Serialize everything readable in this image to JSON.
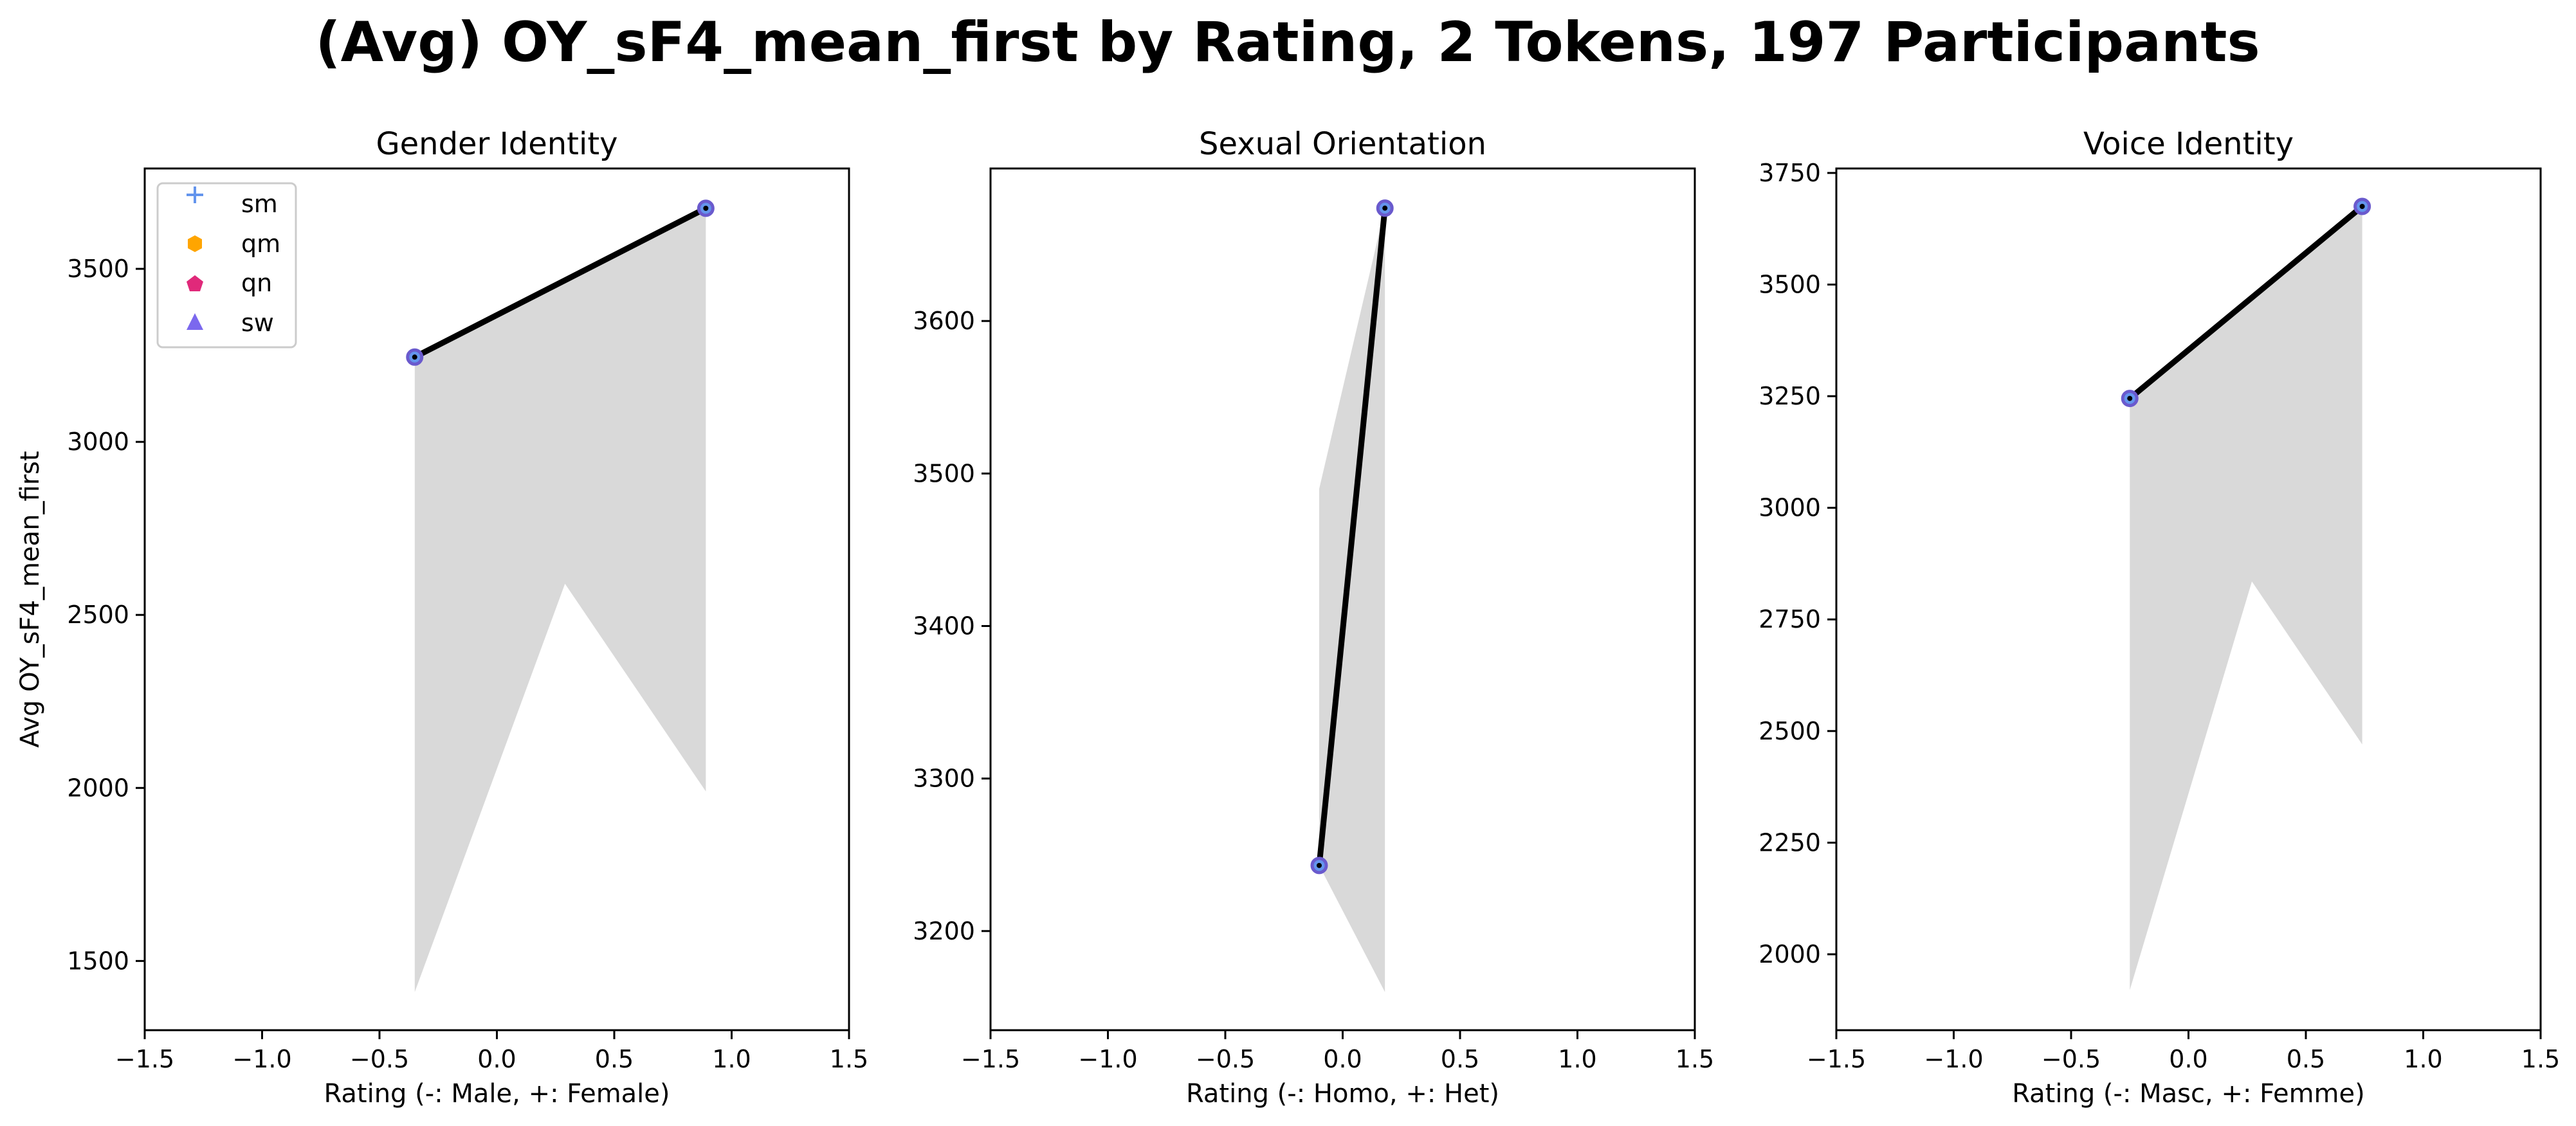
{
  "figure": {
    "title": "(Avg) OY_sF4_mean_first by Rating, 2 Tokens, 197 Participants"
  },
  "legend": {
    "placement": "upper-left of first panel",
    "entries": [
      {
        "label": "sm",
        "marker": "plus",
        "color": "#6495ed"
      },
      {
        "label": "qm",
        "marker": "hexagon",
        "color": "#ffa500"
      },
      {
        "label": "qn",
        "marker": "pentagon",
        "color": "#e0297a"
      },
      {
        "label": "sw",
        "marker": "triangle",
        "color": "#7b68ee"
      }
    ]
  },
  "colors": {
    "line": "#000000",
    "band": "#d9d9d9",
    "point_edge": "#6a5acd",
    "point_fill": "#6495ed"
  },
  "chart_data": [
    {
      "type": "line",
      "title": "Gender Identity",
      "xlabel": "Rating (-: Male, +: Female)",
      "ylabel": "Avg OY_sF4_mean_first",
      "xlim": [
        -1.5,
        1.5
      ],
      "ylim": [
        1300,
        3790
      ],
      "xticks": [
        -1.5,
        -1.0,
        -0.5,
        0.0,
        0.5,
        1.0,
        1.5
      ],
      "xtick_labels": [
        "−1.5",
        "−1.0",
        "−0.5",
        "0.0",
        "0.5",
        "1.0",
        "1.5"
      ],
      "yticks": [
        1500,
        2000,
        2500,
        3000,
        3500
      ],
      "ytick_labels": [
        "1500",
        "2000",
        "2500",
        "3000",
        "3500"
      ],
      "points": [
        {
          "x": -0.35,
          "y": 3245
        },
        {
          "x": 0.89,
          "y": 3675
        }
      ],
      "band": [
        {
          "x": -0.35,
          "y": 3245
        },
        {
          "x": 0.89,
          "y": 3675
        },
        {
          "x": 0.89,
          "y": 1990
        },
        {
          "x": 0.29,
          "y": 2590
        },
        {
          "x": -0.35,
          "y": 1410
        }
      ],
      "grid": false
    },
    {
      "type": "line",
      "title": "Sexual Orientation",
      "xlabel": "Rating (-: Homo, +: Het)",
      "ylabel": "",
      "xlim": [
        -1.5,
        1.5
      ],
      "ylim": [
        3135,
        3700
      ],
      "xticks": [
        -1.5,
        -1.0,
        -0.5,
        0.0,
        0.5,
        1.0,
        1.5
      ],
      "xtick_labels": [
        "−1.5",
        "−1.0",
        "−0.5",
        "0.0",
        "0.5",
        "1.0",
        "1.5"
      ],
      "yticks": [
        3200,
        3300,
        3400,
        3500,
        3600
      ],
      "ytick_labels": [
        "3200",
        "3300",
        "3400",
        "3500",
        "3600"
      ],
      "points": [
        {
          "x": -0.1,
          "y": 3243
        },
        {
          "x": 0.18,
          "y": 3674
        }
      ],
      "band": [
        {
          "x": -0.1,
          "y": 3490
        },
        {
          "x": 0.18,
          "y": 3674
        },
        {
          "x": 0.18,
          "y": 3160
        },
        {
          "x": -0.1,
          "y": 3243
        }
      ],
      "grid": false
    },
    {
      "type": "line",
      "title": "Voice Identity",
      "xlabel": "Rating (-: Masc, +: Femme)",
      "ylabel": "",
      "xlim": [
        -1.5,
        1.5
      ],
      "ylim": [
        1830,
        3760
      ],
      "xticks": [
        -1.5,
        -1.0,
        -0.5,
        0.0,
        0.5,
        1.0,
        1.5
      ],
      "xtick_labels": [
        "−1.5",
        "−1.0",
        "−0.5",
        "0.0",
        "0.5",
        "1.0",
        "1.5"
      ],
      "yticks": [
        2000,
        2250,
        2500,
        2750,
        3000,
        3250,
        3500,
        3750
      ],
      "ytick_labels": [
        "2000",
        "2250",
        "2500",
        "2750",
        "3000",
        "3250",
        "3500",
        "3750"
      ],
      "points": [
        {
          "x": -0.25,
          "y": 3245
        },
        {
          "x": 0.74,
          "y": 3675
        }
      ],
      "band": [
        {
          "x": -0.25,
          "y": 3245
        },
        {
          "x": 0.74,
          "y": 3675
        },
        {
          "x": 0.74,
          "y": 2470
        },
        {
          "x": 0.27,
          "y": 2835
        },
        {
          "x": -0.25,
          "y": 1920
        }
      ],
      "grid": false
    }
  ]
}
